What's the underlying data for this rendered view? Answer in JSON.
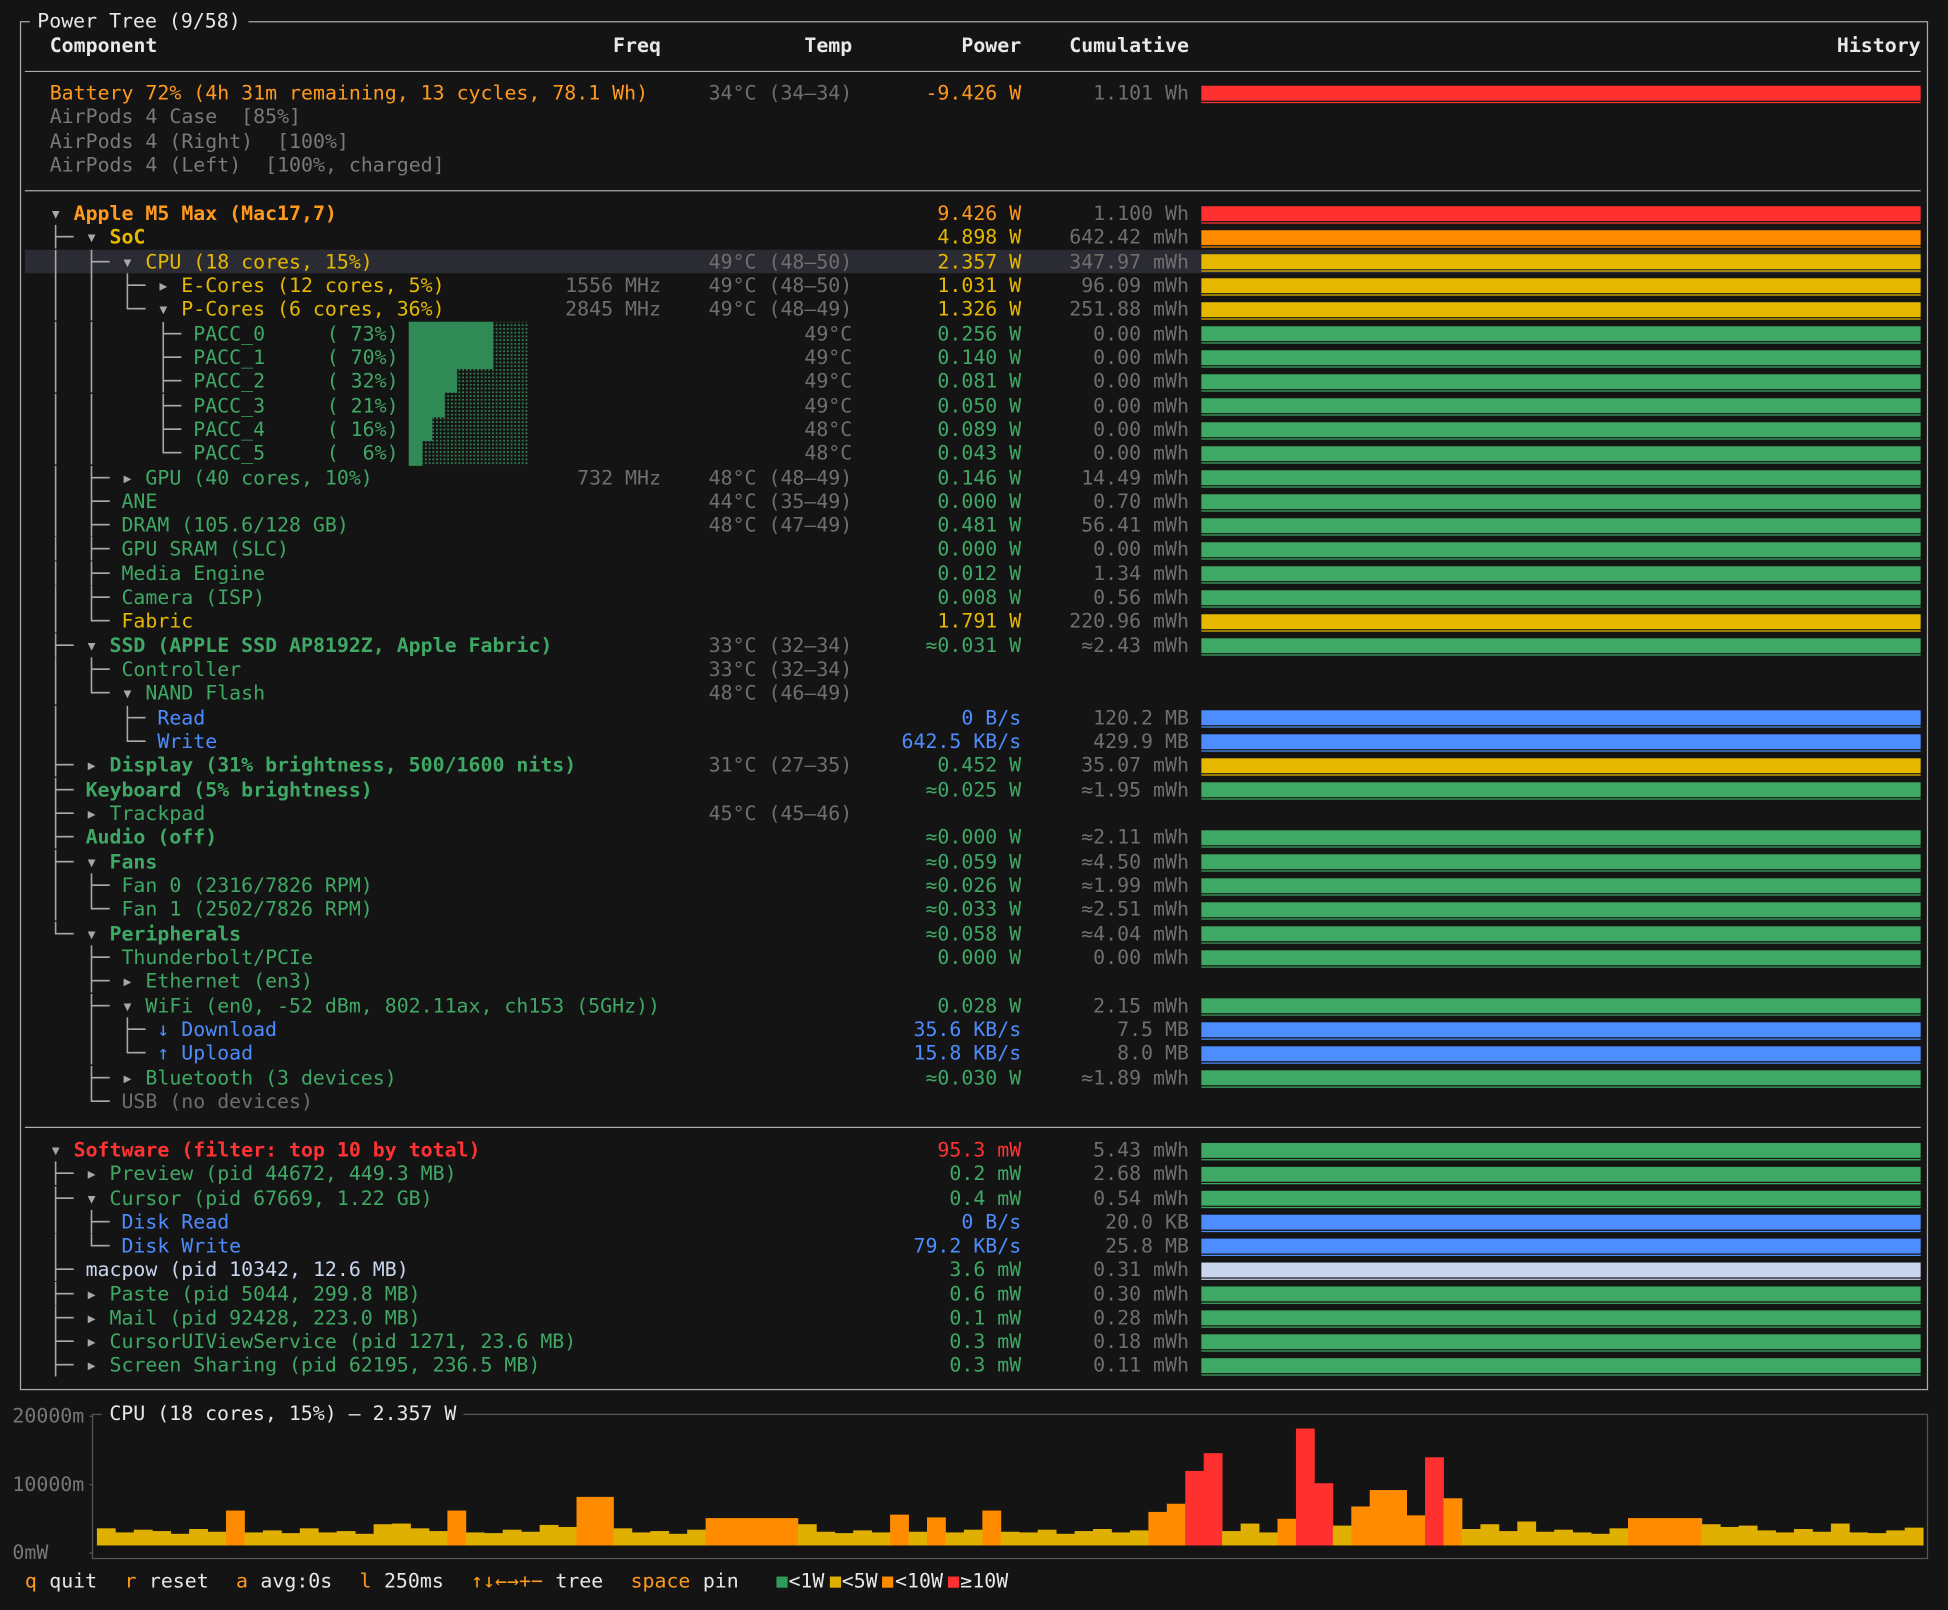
{
  "header": {
    "title": "Power Tree (9/58)",
    "columns": [
      "Component",
      "Freq",
      "Temp",
      "Power",
      "Cumulative",
      "History"
    ]
  },
  "battery": [
    {
      "name": "Battery 72% (4h 31m remaining, 13 cycles, 78.1 Wh)",
      "temp": "34°C (34–34)",
      "power": "-9.426 W",
      "cumulative": "1.101 Wh",
      "color": "#ff9a1f",
      "history_color": "#ff3030"
    },
    {
      "name": "AirPods 4 Case  [85%]",
      "color": "#7a7a7a"
    },
    {
      "name": "AirPods 4 (Right)  [100%]",
      "color": "#7a7a7a"
    },
    {
      "name": "AirPods 4 (Left)  [100%, charged]",
      "color": "#7a7a7a"
    }
  ],
  "tree": [
    {
      "tree": "▾ ",
      "name": "Apple M5 Max (Mac17,7)",
      "power": "9.426 W",
      "cumulative": "1.100 Wh",
      "color": "#ff9a1f",
      "bold": true,
      "history_color": "#ff3030"
    },
    {
      "tree": "├─ ▾ ",
      "name": "SoC",
      "power": "4.898 W",
      "cumulative": "642.42 mWh",
      "color": "#e6b800",
      "bold": true,
      "history_color": "#ff8c00"
    },
    {
      "tree": "│  ├─ ▾ ",
      "name": "CPU (18 cores, 15%)",
      "temp": "49°C (48–50)",
      "power": "2.357 W",
      "cumulative": "347.97 mWh",
      "color": "#e6b800",
      "selected": true
    },
    {
      "tree": "│  │  ├─ ▸ ",
      "name": "E-Cores (12 cores, 5%)",
      "freq": "1556 MHz",
      "temp": "49°C (48–50)",
      "power": "1.031 W",
      "cumulative": "96.09 mWh",
      "color": "#e6b800"
    },
    {
      "tree": "│  │  └─ ▾ ",
      "name": "P-Cores (6 cores, 36%)",
      "freq": "2845 MHz",
      "temp": "49°C (48–49)",
      "power": "1.326 W",
      "cumulative": "251.88 mWh",
      "color": "#e6b800"
    },
    {
      "tree": "│  │     ├─ ",
      "name": "PACC_0",
      "pct": "( 73%)",
      "temp": "49°C",
      "power": "0.256 W",
      "cumulative": "0.00 mWh",
      "color": "#3fa864"
    },
    {
      "tree": "│  │     ├─ ",
      "name": "PACC_1",
      "pct": "( 70%)",
      "temp": "49°C",
      "power": "0.140 W",
      "cumulative": "0.00 mWh",
      "color": "#3fa864"
    },
    {
      "tree": "│  │     ├─ ",
      "name": "PACC_2",
      "pct": "( 32%)",
      "temp": "49°C",
      "power": "0.081 W",
      "cumulative": "0.00 mWh",
      "color": "#3fa864"
    },
    {
      "tree": "│  │     ├─ ",
      "name": "PACC_3",
      "pct": "( 21%)",
      "temp": "49°C",
      "power": "0.050 W",
      "cumulative": "0.00 mWh",
      "color": "#3fa864"
    },
    {
      "tree": "│  │     ├─ ",
      "name": "PACC_4",
      "pct": "( 16%)",
      "temp": "48°C",
      "power": "0.089 W",
      "cumulative": "0.00 mWh",
      "color": "#3fa864"
    },
    {
      "tree": "│  │     └─ ",
      "name": "PACC_5",
      "pct": "(  6%)",
      "temp": "48°C",
      "power": "0.043 W",
      "cumulative": "0.00 mWh",
      "color": "#3fa864"
    },
    {
      "tree": "│  ├─ ▸ ",
      "name": "GPU (40 cores, 10%)",
      "freq": "732 MHz",
      "temp": "48°C (48–49)",
      "power": "0.146 W",
      "cumulative": "14.49 mWh",
      "color": "#3fa864"
    },
    {
      "tree": "│  ├─ ",
      "name": "ANE",
      "temp": "44°C (35–49)",
      "power": "0.000 W",
      "cumulative": "0.70 mWh",
      "color": "#3fa864"
    },
    {
      "tree": "│  ├─ ",
      "name": "DRAM (105.6/128 GB)",
      "temp": "48°C (47–49)",
      "power": "0.481 W",
      "cumulative": "56.41 mWh",
      "color": "#3fa864"
    },
    {
      "tree": "│  ├─ ",
      "name": "GPU SRAM (SLC)",
      "power": "0.000 W",
      "cumulative": "0.00 mWh",
      "color": "#3fa864"
    },
    {
      "tree": "│  ├─ ",
      "name": "Media Engine",
      "power": "0.012 W",
      "cumulative": "1.34 mWh",
      "color": "#3fa864"
    },
    {
      "tree": "│  ├─ ",
      "name": "Camera (ISP)",
      "power": "0.008 W",
      "cumulative": "0.56 mWh",
      "color": "#3fa864"
    },
    {
      "tree": "│  └─ ",
      "name": "Fabric",
      "power": "1.791 W",
      "cumulative": "220.96 mWh",
      "color": "#e6b800"
    },
    {
      "tree": "├─ ▾ ",
      "name": "SSD (APPLE SSD AP8192Z, Apple Fabric)",
      "temp": "33°C (32–34)",
      "power": "≈0.031 W",
      "cumulative": "≈2.43 mWh",
      "color": "#3fa864",
      "bold": true
    },
    {
      "tree": "│  ├─ ",
      "name": "Controller",
      "temp": "33°C (32–34)",
      "color": "#3fa864"
    },
    {
      "tree": "│  └─ ▾ ",
      "name": "NAND Flash",
      "temp": "48°C (46–49)",
      "color": "#3fa864"
    },
    {
      "tree": "│     ├─ ",
      "name": "Read",
      "power": "0 B/s",
      "cumulative": "120.2 MB",
      "color": "#4d8dff"
    },
    {
      "tree": "│     └─ ",
      "name": "Write",
      "power": "642.5 KB/s",
      "cumulative": "429.9 MB",
      "color": "#4d8dff"
    },
    {
      "tree": "├─ ▸ ",
      "name": "Display (31% brightness, 500/1600 nits)",
      "temp": "31°C (27–35)",
      "power": "0.452 W",
      "cumulative": "35.07 mWh",
      "color": "#3fa864",
      "bold": true,
      "history_color": "#e6b800"
    },
    {
      "tree": "├─ ",
      "name": "Keyboard (5% brightness)",
      "power": "≈0.025 W",
      "cumulative": "≈1.95 mWh",
      "color": "#3fa864",
      "bold": true
    },
    {
      "tree": "├─ ▸ ",
      "name": "Trackpad",
      "temp": "45°C (45–46)",
      "color": "#3fa864"
    },
    {
      "tree": "├─ ",
      "name": "Audio (off)",
      "power": "≈0.000 W",
      "cumulative": "≈2.11 mWh",
      "color": "#3fa864",
      "bold": true
    },
    {
      "tree": "├─ ▾ ",
      "name": "Fans",
      "power": "≈0.059 W",
      "cumulative": "≈4.50 mWh",
      "color": "#3fa864",
      "bold": true
    },
    {
      "tree": "│  ├─ ",
      "name": "Fan 0 (2316/7826 RPM)",
      "power": "≈0.026 W",
      "cumulative": "≈1.99 mWh",
      "color": "#3fa864"
    },
    {
      "tree": "│  └─ ",
      "name": "Fan 1 (2502/7826 RPM)",
      "power": "≈0.033 W",
      "cumulative": "≈2.51 mWh",
      "color": "#3fa864"
    },
    {
      "tree": "└─ ▾ ",
      "name": "Peripherals",
      "power": "≈0.058 W",
      "cumulative": "≈4.04 mWh",
      "color": "#3fa864",
      "bold": true
    },
    {
      "tree": "   ├─ ",
      "name": "Thunderbolt/PCIe",
      "power": "0.000 W",
      "cumulative": "0.00 mWh",
      "color": "#3fa864"
    },
    {
      "tree": "   ├─ ▸ ",
      "name": "Ethernet (en3)",
      "color": "#3fa864"
    },
    {
      "tree": "   ├─ ▾ ",
      "name": "WiFi (en0, -52 dBm, 802.11ax, ch153 (5GHz))",
      "power": "0.028 W",
      "cumulative": "2.15 mWh",
      "color": "#3fa864"
    },
    {
      "tree": "   │  ├─ ",
      "name": "↓ Download",
      "power": "35.6 KB/s",
      "cumulative": "7.5 MB",
      "color": "#4d8dff"
    },
    {
      "tree": "   │  └─ ",
      "name": "↑ Upload",
      "power": "15.8 KB/s",
      "cumulative": "8.0 MB",
      "color": "#4d8dff"
    },
    {
      "tree": "   ├─ ▸ ",
      "name": "Bluetooth (3 devices)",
      "power": "≈0.030 W",
      "cumulative": "≈1.89 mWh",
      "color": "#3fa864"
    },
    {
      "tree": "   └─ ",
      "name": "USB (no devices)",
      "color": "#6e6e6e"
    }
  ],
  "software": [
    {
      "tree": "▾ ",
      "name": "Software (filter: top 10 by total)",
      "power": "95.3 mW",
      "cumulative": "5.43 mWh",
      "color": "#ff3333",
      "bold": true,
      "history_color": "#3fa864"
    },
    {
      "tree": "├─ ▸ ",
      "name": "Preview (pid 44672, 449.3 MB)",
      "power": "0.2 mW",
      "cumulative": "2.68 mWh",
      "color": "#3fa864"
    },
    {
      "tree": "├─ ▾ ",
      "name": "Cursor (pid 67669, 1.22 GB)",
      "power": "0.4 mW",
      "cumulative": "0.54 mWh",
      "color": "#3fa864"
    },
    {
      "tree": "│  ├─ ",
      "name": "Disk Read",
      "power": "0 B/s",
      "cumulative": "20.0 KB",
      "color": "#4d8dff"
    },
    {
      "tree": "│  └─ ",
      "name": "Disk Write",
      "power": "79.2 KB/s",
      "cumulative": "25.8 MB",
      "color": "#4d8dff"
    },
    {
      "tree": "├─ ",
      "name": "macpow (pid 10342, 12.6 MB)",
      "power": "3.6 mW",
      "cumulative": "0.31 mWh",
      "color": "#c9d6ee",
      "power_color": "#3fa864"
    },
    {
      "tree": "├─ ▸ ",
      "name": "Paste (pid 5044, 299.8 MB)",
      "power": "0.6 mW",
      "cumulative": "0.30 mWh",
      "color": "#3fa864"
    },
    {
      "tree": "├─ ▸ ",
      "name": "Mail (pid 92428, 223.0 MB)",
      "power": "0.1 mW",
      "cumulative": "0.28 mWh",
      "color": "#3fa864"
    },
    {
      "tree": "├─ ▸ ",
      "name": "CursorUIViewService (pid 1271, 23.6 MB)",
      "power": "0.3 mW",
      "cumulative": "0.18 mWh",
      "color": "#3fa864"
    },
    {
      "tree": "├─ ▸ ",
      "name": "Screen Sharing (pid 62195, 236.5 MB)",
      "power": "0.3 mW",
      "cumulative": "0.11 mWh",
      "color": "#3fa864"
    }
  ],
  "chart_data": {
    "type": "bar",
    "title": "CPU (18 cores, 15%) — 2.357 W",
    "ylim": [
      0,
      20000
    ],
    "yticks": [
      {
        "value": 20000,
        "label": "20000m"
      },
      {
        "value": 10000,
        "label": "10000m"
      },
      {
        "value": 0,
        "label": "0mW"
      }
    ],
    "values": [
      3600,
      3000,
      3400,
      3200,
      2800,
      3500,
      3100,
      6200,
      3000,
      3300,
      2900,
      3600,
      3000,
      3200,
      2800,
      4200,
      4300,
      3600,
      3200,
      6200,
      3000,
      2900,
      3400,
      3100,
      4100,
      3800,
      8200,
      8200,
      3600,
      3000,
      3200,
      2800,
      3400,
      5100,
      5100,
      5100,
      5100,
      5100,
      4200,
      3100,
      2900,
      3300,
      3000,
      5600,
      3100,
      5200,
      3000,
      3400,
      6200,
      3100,
      3000,
      3400,
      2800,
      3200,
      3500,
      3000,
      3300,
      6000,
      7200,
      12000,
      14600,
      3200,
      4300,
      3000,
      5000,
      18200,
      10200,
      4000,
      6800,
      9200,
      9200,
      5500,
      14000,
      8000,
      3500,
      4200,
      3200,
      4600,
      3100,
      3400,
      3000,
      2800,
      3600,
      5100,
      5100,
      5100,
      5100,
      4200,
      3800,
      4000,
      3300,
      3000,
      3500,
      3100,
      4300,
      3000,
      2900,
      3300,
      3700
    ],
    "legend": [
      {
        "value": 1000,
        "label": "<1W",
        "color": "#2f9a5a"
      },
      {
        "value": 5000,
        "label": "<5W",
        "color": "#e0b000"
      },
      {
        "value": 10000,
        "label": "<10W",
        "color": "#ff8c00"
      },
      {
        "value": 10000,
        "label": "≥10W",
        "color": "#ff3030"
      }
    ]
  },
  "footer": [
    {
      "key": "q",
      "label": "quit"
    },
    {
      "key": "r",
      "label": "reset"
    },
    {
      "key": "a",
      "label": "avg:0s"
    },
    {
      "key": "l",
      "label": "250ms"
    },
    {
      "key": "↑↓←→+−",
      "label": "tree"
    },
    {
      "key": "space",
      "label": "pin"
    }
  ]
}
